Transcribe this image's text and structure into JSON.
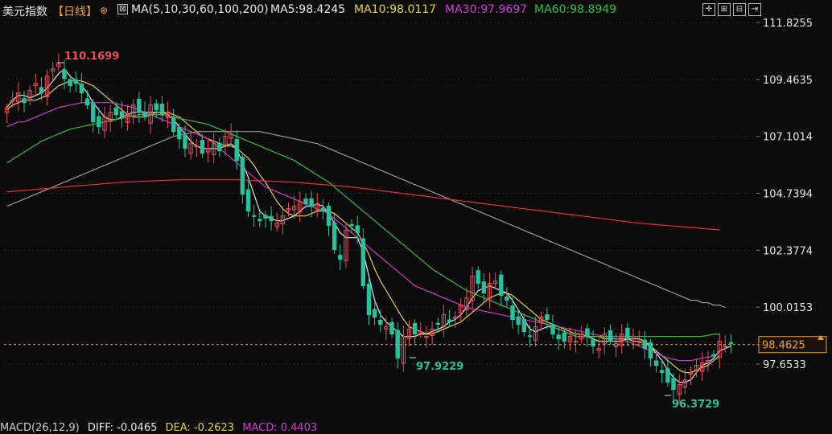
{
  "header": {
    "title": "美元指数",
    "period": "【日线】",
    "ma_label": "MA(5,10,30,60,100,200)",
    "ma5": "MA5:98.4245",
    "ma10": "MA10:98.0117",
    "ma30": "MA30:97.9697",
    "ma60": "MA60:98.8949"
  },
  "footer": {
    "macd": "MACD(26,12,9)",
    "diff": "DIFF: -0.0465",
    "dea": "DEA: -0.2623",
    "macd_val": "MACD: 0.4403"
  },
  "colors": {
    "up": "#e8505b",
    "down": "#27c19c",
    "ma5": "#e6e6e6",
    "ma10": "#e6d23c",
    "ma30": "#d03ad0",
    "ma60": "#2fbf3f",
    "ma100": "#9a9a9a",
    "ma200": "#e03535",
    "grid": "#3a3a3a",
    "last_price": "#f0a030"
  },
  "chart_data": {
    "type": "candlestick",
    "y_ticks": [
      "111.8255",
      "109.4635",
      "107.1014",
      "104.7394",
      "102.3774",
      "100.0153",
      "97.6533"
    ],
    "ylim": [
      96.0,
      112.0
    ],
    "last_price": "98.4625",
    "annotations": [
      {
        "text": "110.1699",
        "value": 110.1699,
        "kind": "high"
      },
      {
        "text": "97.9229",
        "value": 97.9229,
        "kind": "low"
      },
      {
        "text": "96.3729",
        "value": 96.3729,
        "kind": "low"
      }
    ],
    "close": [
      108.3,
      108.6,
      108.9,
      108.5,
      109.0,
      109.3,
      108.9,
      109.6,
      109.9,
      110.1,
      109.5,
      109.2,
      109.3,
      108.9,
      108.4,
      107.7,
      107.5,
      107.9,
      108.1,
      108.0,
      107.9,
      108.0,
      108.4,
      108.1,
      107.9,
      108.4,
      108.2,
      108.0,
      108.1,
      107.3,
      107.0,
      106.6,
      106.8,
      106.7,
      106.4,
      106.6,
      106.8,
      106.5,
      107.1,
      107.2,
      106.1,
      104.7,
      104.0,
      103.8,
      103.6,
      103.7,
      103.6,
      103.5,
      103.8,
      104.1,
      104.2,
      104.4,
      104.3,
      104.2,
      104.3,
      104.0,
      103.4,
      102.4,
      102.0,
      103.2,
      103.4,
      103.1,
      100.9,
      99.7,
      99.6,
      99.3,
      99.2,
      98.9,
      97.9,
      98.8,
      99.1,
      98.9,
      99.0,
      98.8,
      99.1,
      99.3,
      99.7,
      99.4,
      99.6,
      100.1,
      100.4,
      101.3,
      101.0,
      100.6,
      101.0,
      101.1,
      100.5,
      100.3,
      99.5,
      99.3,
      99.0,
      98.8,
      99.2,
      99.6,
      99.5,
      98.9,
      98.7,
      98.6,
      98.8,
      98.6,
      98.9,
      98.8,
      98.4,
      98.3,
      98.9,
      98.6,
      98.5,
      98.9,
      98.7,
      98.8,
      98.6,
      98.3,
      97.9,
      97.6,
      97.3,
      96.9,
      96.6,
      96.8,
      97.0,
      97.3,
      97.6,
      97.7,
      97.8,
      98.0,
      98.6,
      98.4,
      98.5
    ],
    "ma": [
      {
        "name": "MA5",
        "values": [
          108.3,
          108.6,
          108.8,
          108.8,
          108.7,
          108.8,
          108.9,
          109.1,
          109.4,
          109.7,
          109.9,
          109.6,
          109.4,
          109.2,
          108.9,
          108.5,
          108.2,
          107.9,
          107.8,
          107.8,
          107.9,
          108.0,
          108.1,
          108.1,
          108.1,
          108.1,
          108.1,
          108.1,
          108.0,
          107.8,
          107.5,
          107.2,
          106.9,
          106.7,
          106.6,
          106.6,
          106.6,
          106.6,
          106.7,
          106.8,
          106.6,
          106.0,
          105.4,
          104.7,
          104.0,
          103.8,
          103.7,
          103.6,
          103.6,
          103.7,
          103.8,
          104.0,
          104.2,
          104.2,
          104.3,
          104.2,
          103.9,
          103.5,
          103.1,
          102.9,
          102.9,
          102.9,
          102.3,
          101.3,
          100.3,
          99.7,
          99.4,
          99.2,
          99.0,
          98.8,
          98.8,
          98.8,
          98.9,
          98.9,
          99.0,
          99.1,
          99.2,
          99.4,
          99.5,
          99.7,
          100.0,
          100.4,
          100.7,
          100.8,
          100.9,
          100.8,
          100.7,
          100.6,
          100.3,
          99.9,
          99.5,
          99.1,
          99.0,
          99.1,
          99.2,
          99.2,
          99.1,
          99.0,
          98.9,
          98.8,
          98.8,
          98.8,
          98.7,
          98.6,
          98.6,
          98.6,
          98.6,
          98.6,
          98.7,
          98.7,
          98.7,
          98.6,
          98.4,
          98.1,
          97.8,
          97.4,
          97.1,
          96.9,
          96.9,
          97.0,
          97.3,
          97.6,
          97.7,
          97.9,
          98.2,
          98.3,
          98.4
        ]
      },
      {
        "name": "MA10",
        "values": [
          108.2,
          108.4,
          108.5,
          108.6,
          108.6,
          108.6,
          108.7,
          108.8,
          109.0,
          109.2,
          109.3,
          109.4,
          109.4,
          109.4,
          109.3,
          109.2,
          109.0,
          108.8,
          108.6,
          108.4,
          108.2,
          108.0,
          107.9,
          107.9,
          107.9,
          108.0,
          108.1,
          108.1,
          108.1,
          108.0,
          107.9,
          107.7,
          107.5,
          107.3,
          107.1,
          107.0,
          106.9,
          106.8,
          106.7,
          106.7,
          106.6,
          106.4,
          106.2,
          105.9,
          105.5,
          105.2,
          104.8,
          104.4,
          104.1,
          103.9,
          103.8,
          103.8,
          103.8,
          103.9,
          104.0,
          104.0,
          104.0,
          103.9,
          103.7,
          103.5,
          103.3,
          103.1,
          102.7,
          102.2,
          101.6,
          101.1,
          100.7,
          100.3,
          99.9,
          99.5,
          99.2,
          99.1,
          99.0,
          98.9,
          98.9,
          99.0,
          99.1,
          99.2,
          99.3,
          99.4,
          99.6,
          99.8,
          100.0,
          100.2,
          100.4,
          100.5,
          100.6,
          100.6,
          100.5,
          100.3,
          100.1,
          99.9,
          99.7,
          99.5,
          99.4,
          99.3,
          99.2,
          99.1,
          99.0,
          98.9,
          98.9,
          98.8,
          98.8,
          98.8,
          98.7,
          98.7,
          98.7,
          98.7,
          98.7,
          98.6,
          98.6,
          98.5,
          98.4,
          98.2,
          98.0,
          97.8,
          97.6,
          97.4,
          97.3,
          97.3,
          97.4,
          97.5,
          97.6,
          97.8,
          98.0
        ]
      },
      {
        "name": "MA30",
        "values": [
          107.5,
          107.6,
          107.7,
          107.7,
          107.8,
          107.9,
          108.0,
          108.1,
          108.2,
          108.3,
          108.35,
          108.4,
          108.45,
          108.5,
          108.5,
          108.5,
          108.5,
          108.5,
          108.5,
          108.45,
          108.4,
          108.35,
          108.3,
          108.2,
          108.1,
          108.0,
          107.9,
          107.8,
          107.7,
          107.6,
          107.5,
          107.4,
          107.3,
          107.2,
          107.1,
          107.0,
          106.8,
          106.6,
          106.4,
          106.2,
          106.0,
          105.8,
          105.6,
          105.4,
          105.2,
          105.0,
          104.9,
          104.8,
          104.7,
          104.6,
          104.5,
          104.4,
          104.3,
          104.2,
          104.1,
          104.0,
          103.9,
          103.7,
          103.5,
          103.3,
          103.1,
          102.9,
          102.7,
          102.5,
          102.3,
          102.1,
          101.9,
          101.7,
          101.5,
          101.3,
          101.1,
          100.9,
          100.8,
          100.7,
          100.6,
          100.5,
          100.4,
          100.3,
          100.2,
          100.1,
          100.0,
          99.95,
          99.9,
          99.85,
          99.8,
          99.75,
          99.7,
          99.65,
          99.6,
          99.55,
          99.5,
          99.45,
          99.4,
          99.35,
          99.3,
          99.25,
          99.2,
          99.15,
          99.1,
          99.05,
          99.0,
          98.95,
          98.9,
          98.85,
          98.8,
          98.75,
          98.7,
          98.65,
          98.6,
          98.5,
          98.4,
          98.3,
          98.2,
          98.1,
          98.0,
          97.9,
          97.85,
          97.8,
          97.8,
          97.8,
          97.85,
          97.9,
          97.95,
          97.97
        ]
      },
      {
        "name": "MA60",
        "values": [
          106.0,
          106.15,
          106.3,
          106.45,
          106.6,
          106.75,
          106.9,
          107.0,
          107.1,
          107.2,
          107.3,
          107.4,
          107.45,
          107.5,
          107.55,
          107.6,
          107.65,
          107.7,
          107.75,
          107.8,
          107.85,
          107.9,
          107.95,
          108.0,
          108.0,
          108.0,
          108.0,
          108.0,
          107.95,
          107.9,
          107.85,
          107.8,
          107.75,
          107.7,
          107.65,
          107.6,
          107.5,
          107.4,
          107.3,
          107.2,
          107.1,
          107.0,
          106.9,
          106.8,
          106.7,
          106.6,
          106.5,
          106.4,
          106.3,
          106.2,
          106.1,
          105.95,
          105.8,
          105.65,
          105.5,
          105.35,
          105.2,
          105.0,
          104.8,
          104.6,
          104.4,
          104.2,
          104.0,
          103.8,
          103.6,
          103.4,
          103.2,
          103.0,
          102.8,
          102.6,
          102.4,
          102.2,
          102.0,
          101.8,
          101.6,
          101.45,
          101.3,
          101.15,
          101.0,
          100.85,
          100.7,
          100.6,
          100.5,
          100.4,
          100.3,
          100.2,
          100.1,
          100.0,
          99.9,
          99.8,
          99.7,
          99.6,
          99.5,
          99.4,
          99.3,
          99.2,
          99.1,
          99.0,
          98.9,
          98.8,
          98.8,
          98.8,
          98.8,
          98.8,
          98.8,
          98.8,
          98.8,
          98.8,
          98.8,
          98.8,
          98.8,
          98.8,
          98.8,
          98.8,
          98.8,
          98.8,
          98.8,
          98.8,
          98.8,
          98.8,
          98.8,
          98.8,
          98.85,
          98.89,
          98.89
        ]
      },
      {
        "name": "MA100",
        "values": [
          104.2,
          104.3,
          104.4,
          104.5,
          104.6,
          104.7,
          104.8,
          104.9,
          105.0,
          105.1,
          105.2,
          105.3,
          105.4,
          105.5,
          105.6,
          105.7,
          105.8,
          105.9,
          106.0,
          106.1,
          106.2,
          106.3,
          106.4,
          106.5,
          106.6,
          106.7,
          106.8,
          106.9,
          107.0,
          107.1,
          107.15,
          107.2,
          107.25,
          107.3,
          107.3,
          107.3,
          107.3,
          107.3,
          107.3,
          107.3,
          107.3,
          107.3,
          107.3,
          107.3,
          107.3,
          107.25,
          107.2,
          107.15,
          107.1,
          107.05,
          107.0,
          106.95,
          106.9,
          106.85,
          106.8,
          106.7,
          106.6,
          106.5,
          106.4,
          106.3,
          106.2,
          106.1,
          106.0,
          105.9,
          105.8,
          105.7,
          105.6,
          105.5,
          105.4,
          105.3,
          105.2,
          105.1,
          105.0,
          104.9,
          104.8,
          104.7,
          104.6,
          104.5,
          104.4,
          104.3,
          104.2,
          104.1,
          104.0,
          103.9,
          103.8,
          103.7,
          103.6,
          103.5,
          103.4,
          103.3,
          103.2,
          103.1,
          103.0,
          102.9,
          102.8,
          102.7,
          102.6,
          102.5,
          102.4,
          102.3,
          102.2,
          102.1,
          102.0,
          101.9,
          101.8,
          101.7,
          101.6,
          101.5,
          101.4,
          101.3,
          101.2,
          101.1,
          101.0,
          100.9,
          100.8,
          100.7,
          100.6,
          100.5,
          100.4,
          100.3,
          100.3,
          100.2,
          100.2,
          100.1,
          100.1,
          100.0
        ]
      },
      {
        "name": "MA200",
        "values": [
          104.8,
          104.82,
          104.84,
          104.86,
          104.88,
          104.9,
          104.92,
          104.94,
          104.96,
          104.98,
          105.0,
          105.02,
          105.04,
          105.06,
          105.08,
          105.1,
          105.12,
          105.14,
          105.16,
          105.18,
          105.2,
          105.21,
          105.22,
          105.23,
          105.24,
          105.25,
          105.26,
          105.27,
          105.28,
          105.29,
          105.3,
          105.3,
          105.3,
          105.3,
          105.3,
          105.3,
          105.3,
          105.3,
          105.3,
          105.3,
          105.3,
          105.29,
          105.28,
          105.27,
          105.26,
          105.25,
          105.24,
          105.23,
          105.22,
          105.21,
          105.2,
          105.18,
          105.16,
          105.14,
          105.12,
          105.1,
          105.08,
          105.06,
          105.04,
          105.02,
          105.0,
          104.97,
          104.94,
          104.91,
          104.88,
          104.85,
          104.82,
          104.79,
          104.76,
          104.73,
          104.7,
          104.67,
          104.64,
          104.61,
          104.58,
          104.55,
          104.52,
          104.49,
          104.46,
          104.43,
          104.4,
          104.37,
          104.34,
          104.31,
          104.28,
          104.25,
          104.22,
          104.19,
          104.16,
          104.13,
          104.1,
          104.07,
          104.04,
          104.01,
          103.98,
          103.95,
          103.92,
          103.89,
          103.86,
          103.83,
          103.8,
          103.77,
          103.74,
          103.71,
          103.68,
          103.65,
          103.62,
          103.59,
          103.56,
          103.53,
          103.5,
          103.48,
          103.46,
          103.44,
          103.42,
          103.4,
          103.38,
          103.36,
          103.34,
          103.32,
          103.3,
          103.28,
          103.26,
          103.24,
          103.22
        ]
      }
    ]
  }
}
